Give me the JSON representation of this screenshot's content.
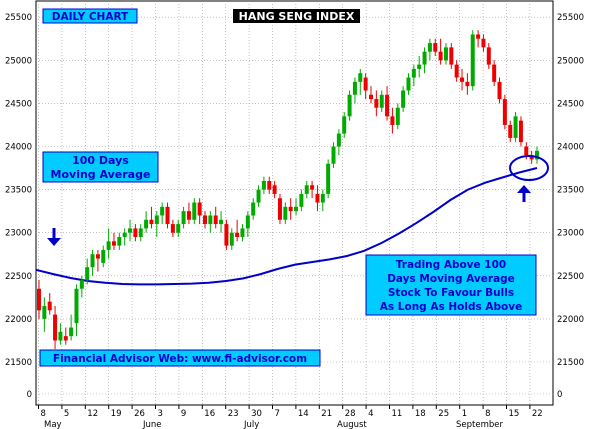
{
  "chart_data": {
    "type": "candlestick",
    "title": "HANG SENG INDEX",
    "subtitle": "DAILY CHART",
    "ylim": [
      0,
      25800
    ],
    "yticks": [
      0,
      21500,
      22000,
      22500,
      23000,
      23500,
      24000,
      24500,
      25000,
      25500
    ],
    "x_day_labels": [
      "8",
      "5",
      "12",
      "19",
      "26",
      "3",
      "9",
      "16",
      "23",
      "30",
      "7",
      "14",
      "21",
      "28",
      "4",
      "11",
      "18",
      "25",
      "1",
      "8",
      "15",
      "22"
    ],
    "x_month_labels": [
      "May",
      "June",
      "July",
      "August",
      "September"
    ],
    "annotations": {
      "ma_label": [
        "100 Days",
        "Moving Average"
      ],
      "note_lines": [
        "Trading Above 100",
        "Days Moving Average",
        "Stock To Favour Bulls",
        "As Long As Holds Above"
      ],
      "website": "Financial Advisor Web: www.fi-advisor.com"
    },
    "colors": {
      "up": "#00aa00",
      "down": "#ee0000",
      "moving_average": "#0000cc",
      "box_fill": "#00ccff",
      "box_text": "#0000cc",
      "title_bg": "#000000",
      "title_text": "#ffffff"
    },
    "moving_average_100": [
      22570,
      22520,
      22475,
      22440,
      22420,
      22405,
      22400,
      22400,
      22405,
      22410,
      22420,
      22440,
      22470,
      22520,
      22580,
      22630,
      22660,
      22690,
      22730,
      22790,
      22880,
      22990,
      23110,
      23240,
      23380,
      23500,
      23580,
      23640,
      23700,
      23750
    ],
    "candles": [
      {
        "o": 22350,
        "h": 22450,
        "l": 22000,
        "c": 22100
      },
      {
        "o": 22000,
        "h": 22250,
        "l": 21850,
        "c": 22150
      },
      {
        "o": 22200,
        "h": 22300,
        "l": 22050,
        "c": 22100
      },
      {
        "o": 22050,
        "h": 22150,
        "l": 21650,
        "c": 21750
      },
      {
        "o": 21750,
        "h": 21950,
        "l": 21700,
        "c": 21850
      },
      {
        "o": 21800,
        "h": 21900,
        "l": 21700,
        "c": 21750
      },
      {
        "o": 21800,
        "h": 22050,
        "l": 21750,
        "c": 21900
      },
      {
        "o": 21950,
        "h": 22400,
        "l": 21800,
        "c": 22350
      },
      {
        "o": 22350,
        "h": 22500,
        "l": 22250,
        "c": 22450
      },
      {
        "o": 22450,
        "h": 22700,
        "l": 22400,
        "c": 22600
      },
      {
        "o": 22600,
        "h": 22800,
        "l": 22500,
        "c": 22750
      },
      {
        "o": 22750,
        "h": 22800,
        "l": 22550,
        "c": 22700
      },
      {
        "o": 22650,
        "h": 22850,
        "l": 22600,
        "c": 22800
      },
      {
        "o": 22800,
        "h": 23050,
        "l": 22700,
        "c": 22900
      },
      {
        "o": 22900,
        "h": 23000,
        "l": 22800,
        "c": 22850
      },
      {
        "o": 22850,
        "h": 23000,
        "l": 22800,
        "c": 22950
      },
      {
        "o": 22950,
        "h": 23050,
        "l": 22850,
        "c": 23000
      },
      {
        "o": 23000,
        "h": 23150,
        "l": 22900,
        "c": 23050
      },
      {
        "o": 23050,
        "h": 23100,
        "l": 22900,
        "c": 22950
      },
      {
        "o": 22950,
        "h": 23100,
        "l": 22900,
        "c": 23050
      },
      {
        "o": 23050,
        "h": 23250,
        "l": 23000,
        "c": 23150
      },
      {
        "o": 23150,
        "h": 23300,
        "l": 23050,
        "c": 23100
      },
      {
        "o": 23100,
        "h": 23250,
        "l": 22950,
        "c": 23200
      },
      {
        "o": 23200,
        "h": 23350,
        "l": 23100,
        "c": 23300
      },
      {
        "o": 23300,
        "h": 23350,
        "l": 23050,
        "c": 23100
      },
      {
        "o": 23100,
        "h": 23150,
        "l": 22950,
        "c": 23000
      },
      {
        "o": 23000,
        "h": 23150,
        "l": 22950,
        "c": 23100
      },
      {
        "o": 23100,
        "h": 23300,
        "l": 23050,
        "c": 23250
      },
      {
        "o": 23250,
        "h": 23350,
        "l": 23100,
        "c": 23150
      },
      {
        "o": 23150,
        "h": 23400,
        "l": 23100,
        "c": 23350
      },
      {
        "o": 23350,
        "h": 23400,
        "l": 23100,
        "c": 23200
      },
      {
        "o": 23200,
        "h": 23250,
        "l": 23050,
        "c": 23100
      },
      {
        "o": 23100,
        "h": 23250,
        "l": 23000,
        "c": 23200
      },
      {
        "o": 23200,
        "h": 23300,
        "l": 23050,
        "c": 23100
      },
      {
        "o": 23100,
        "h": 23250,
        "l": 23000,
        "c": 23150
      },
      {
        "o": 23100,
        "h": 23150,
        "l": 22800,
        "c": 22850
      },
      {
        "o": 22850,
        "h": 23050,
        "l": 22800,
        "c": 23000
      },
      {
        "o": 23000,
        "h": 23150,
        "l": 22900,
        "c": 22950
      },
      {
        "o": 22950,
        "h": 23100,
        "l": 22900,
        "c": 23050
      },
      {
        "o": 23050,
        "h": 23250,
        "l": 22950,
        "c": 23200
      },
      {
        "o": 23200,
        "h": 23400,
        "l": 23150,
        "c": 23350
      },
      {
        "o": 23350,
        "h": 23550,
        "l": 23300,
        "c": 23500
      },
      {
        "o": 23500,
        "h": 23650,
        "l": 23450,
        "c": 23600
      },
      {
        "o": 23600,
        "h": 23650,
        "l": 23450,
        "c": 23500
      },
      {
        "o": 23550,
        "h": 23600,
        "l": 23400,
        "c": 23450
      },
      {
        "o": 23400,
        "h": 23450,
        "l": 23100,
        "c": 23150
      },
      {
        "o": 23150,
        "h": 23350,
        "l": 23100,
        "c": 23300
      },
      {
        "o": 23300,
        "h": 23400,
        "l": 23150,
        "c": 23250
      },
      {
        "o": 23250,
        "h": 23400,
        "l": 23200,
        "c": 23300
      },
      {
        "o": 23300,
        "h": 23500,
        "l": 23250,
        "c": 23450
      },
      {
        "o": 23450,
        "h": 23600,
        "l": 23400,
        "c": 23550
      },
      {
        "o": 23550,
        "h": 23600,
        "l": 23400,
        "c": 23500
      },
      {
        "o": 23450,
        "h": 23550,
        "l": 23250,
        "c": 23350
      },
      {
        "o": 23350,
        "h": 23500,
        "l": 23250,
        "c": 23450
      },
      {
        "o": 23450,
        "h": 23850,
        "l": 23400,
        "c": 23800
      },
      {
        "o": 23800,
        "h": 24050,
        "l": 23750,
        "c": 24000
      },
      {
        "o": 24000,
        "h": 24200,
        "l": 23900,
        "c": 24150
      },
      {
        "o": 24150,
        "h": 24400,
        "l": 24100,
        "c": 24350
      },
      {
        "o": 24350,
        "h": 24650,
        "l": 24300,
        "c": 24600
      },
      {
        "o": 24600,
        "h": 24800,
        "l": 24500,
        "c": 24750
      },
      {
        "o": 24750,
        "h": 24900,
        "l": 24600,
        "c": 24850
      },
      {
        "o": 24800,
        "h": 24850,
        "l": 24550,
        "c": 24650
      },
      {
        "o": 24600,
        "h": 24700,
        "l": 24500,
        "c": 24550
      },
      {
        "o": 24550,
        "h": 24650,
        "l": 24350,
        "c": 24450
      },
      {
        "o": 24450,
        "h": 24650,
        "l": 24400,
        "c": 24600
      },
      {
        "o": 24600,
        "h": 24700,
        "l": 24300,
        "c": 24350
      },
      {
        "o": 24350,
        "h": 24450,
        "l": 24150,
        "c": 24250
      },
      {
        "o": 24250,
        "h": 24500,
        "l": 24200,
        "c": 24450
      },
      {
        "o": 24450,
        "h": 24700,
        "l": 24400,
        "c": 24650
      },
      {
        "o": 24650,
        "h": 24850,
        "l": 24600,
        "c": 24800
      },
      {
        "o": 24800,
        "h": 24950,
        "l": 24700,
        "c": 24900
      },
      {
        "o": 24900,
        "h": 25050,
        "l": 24800,
        "c": 24950
      },
      {
        "o": 24950,
        "h": 25150,
        "l": 24850,
        "c": 25100
      },
      {
        "o": 25100,
        "h": 25250,
        "l": 25000,
        "c": 25200
      },
      {
        "o": 25200,
        "h": 25250,
        "l": 25050,
        "c": 25100
      },
      {
        "o": 25100,
        "h": 25250,
        "l": 24950,
        "c": 25000
      },
      {
        "o": 25000,
        "h": 25200,
        "l": 24950,
        "c": 25150
      },
      {
        "o": 25150,
        "h": 25200,
        "l": 24900,
        "c": 24950
      },
      {
        "o": 24950,
        "h": 25000,
        "l": 24750,
        "c": 24800
      },
      {
        "o": 24800,
        "h": 24900,
        "l": 24650,
        "c": 24750
      },
      {
        "o": 24750,
        "h": 24850,
        "l": 24600,
        "c": 24700
      },
      {
        "o": 24700,
        "h": 25350,
        "l": 24650,
        "c": 25300
      },
      {
        "o": 25300,
        "h": 25350,
        "l": 25150,
        "c": 25250
      },
      {
        "o": 25250,
        "h": 25300,
        "l": 25100,
        "c": 25150
      },
      {
        "o": 25150,
        "h": 25200,
        "l": 24900,
        "c": 24950
      },
      {
        "o": 24950,
        "h": 25000,
        "l": 24700,
        "c": 24750
      },
      {
        "o": 24750,
        "h": 24800,
        "l": 24500,
        "c": 24550
      },
      {
        "o": 24550,
        "h": 24600,
        "l": 24200,
        "c": 24250
      },
      {
        "o": 24250,
        "h": 24300,
        "l": 24050,
        "c": 24100
      },
      {
        "o": 24100,
        "h": 24400,
        "l": 24050,
        "c": 24350
      },
      {
        "o": 24300,
        "h": 24350,
        "l": 24000,
        "c": 24050
      },
      {
        "o": 24000,
        "h": 24050,
        "l": 23850,
        "c": 23900
      },
      {
        "o": 23900,
        "h": 23950,
        "l": 23800,
        "c": 23850
      },
      {
        "o": 23850,
        "h": 24000,
        "l": 23800,
        "c": 23950
      }
    ]
  }
}
